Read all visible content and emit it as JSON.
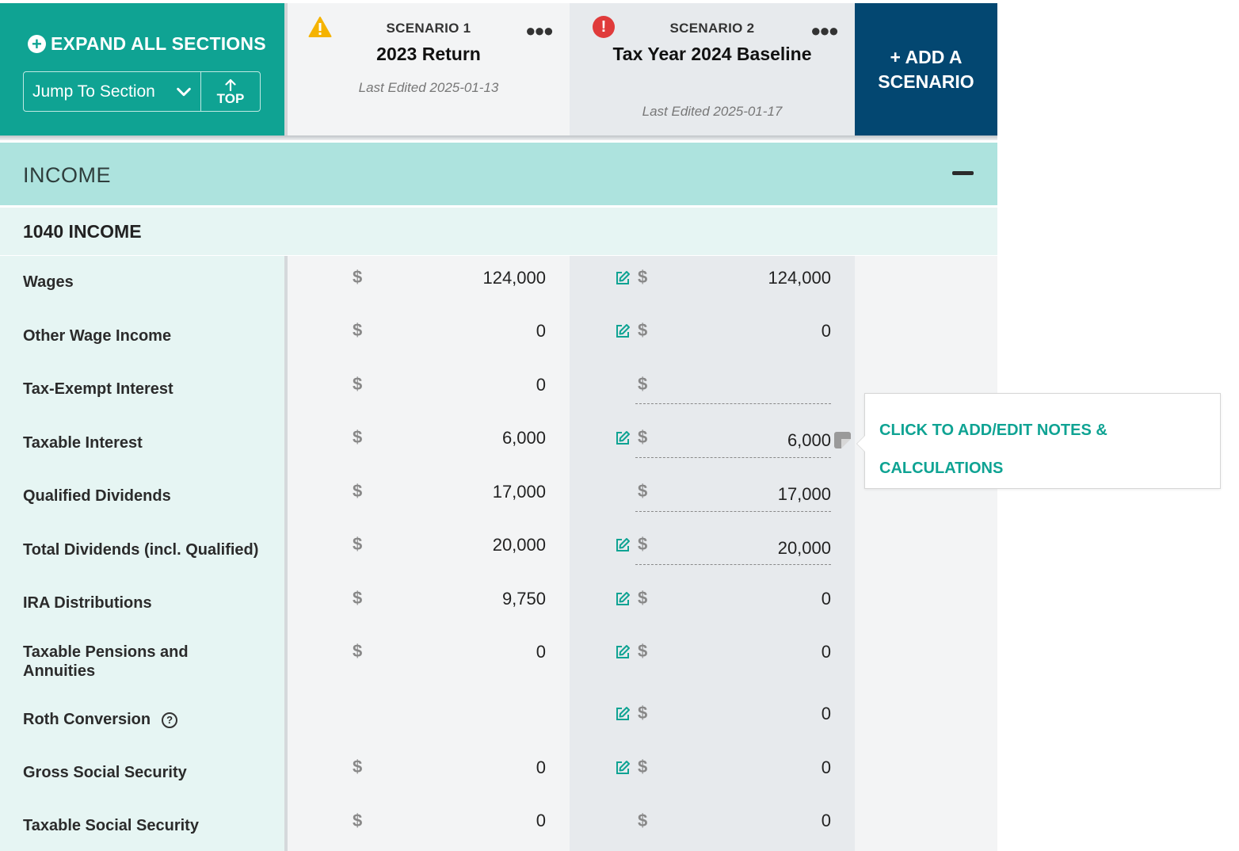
{
  "header": {
    "expand_all_label": "EXPAND ALL SECTIONS",
    "jump_to_section_label": "Jump To Section",
    "top_label": "TOP",
    "add_scenario_label": "+ ADD A SCENARIO"
  },
  "scenarios": [
    {
      "label": "SCENARIO 1",
      "name": "2023 Return",
      "last_edited": "Last Edited 2025-01-13",
      "status_icon": "warning-icon",
      "status_color": "#f5b301"
    },
    {
      "label": "SCENARIO 2",
      "name": "Tax Year 2024 Baseline",
      "last_edited": "Last Edited 2025-01-17",
      "status_icon": "error-icon",
      "status_color": "#e03b3b"
    }
  ],
  "section": {
    "title": "INCOME",
    "subsection": "1040 INCOME"
  },
  "currency_symbol": "$",
  "rows": [
    {
      "label": "Wages",
      "s1": "124,000",
      "s2": "124,000"
    },
    {
      "label": "Other Wage Income",
      "s1": "0",
      "s2": "0"
    },
    {
      "label": "Tax-Exempt Interest",
      "s1": "0",
      "s2": ""
    },
    {
      "label": "Taxable Interest",
      "s1": "6,000",
      "s2": "6,000"
    },
    {
      "label": "Qualified Dividends",
      "s1": "17,000",
      "s2": "17,000"
    },
    {
      "label": "Total Dividends (incl. Qualified)",
      "s1": "20,000",
      "s2": "20,000"
    },
    {
      "label": "IRA Distributions",
      "s1": "9,750",
      "s2": "0"
    },
    {
      "label": "Taxable Pensions and Annuities",
      "s1": "0",
      "s2": "0"
    },
    {
      "label": "Roth Conversion",
      "s1": "",
      "s2": "0"
    },
    {
      "label": "Gross Social Security",
      "s1": "0",
      "s2": "0"
    },
    {
      "label": "Taxable Social Security",
      "s1": "0",
      "s2": "0"
    }
  ],
  "tooltip": {
    "text": "CLICK TO ADD/EDIT NOTES & CALCULATIONS"
  },
  "colors": {
    "teal": "#0fa393",
    "navy": "#034771",
    "section_bg": "#ade3de",
    "row_bg": "#e6f5f3"
  }
}
